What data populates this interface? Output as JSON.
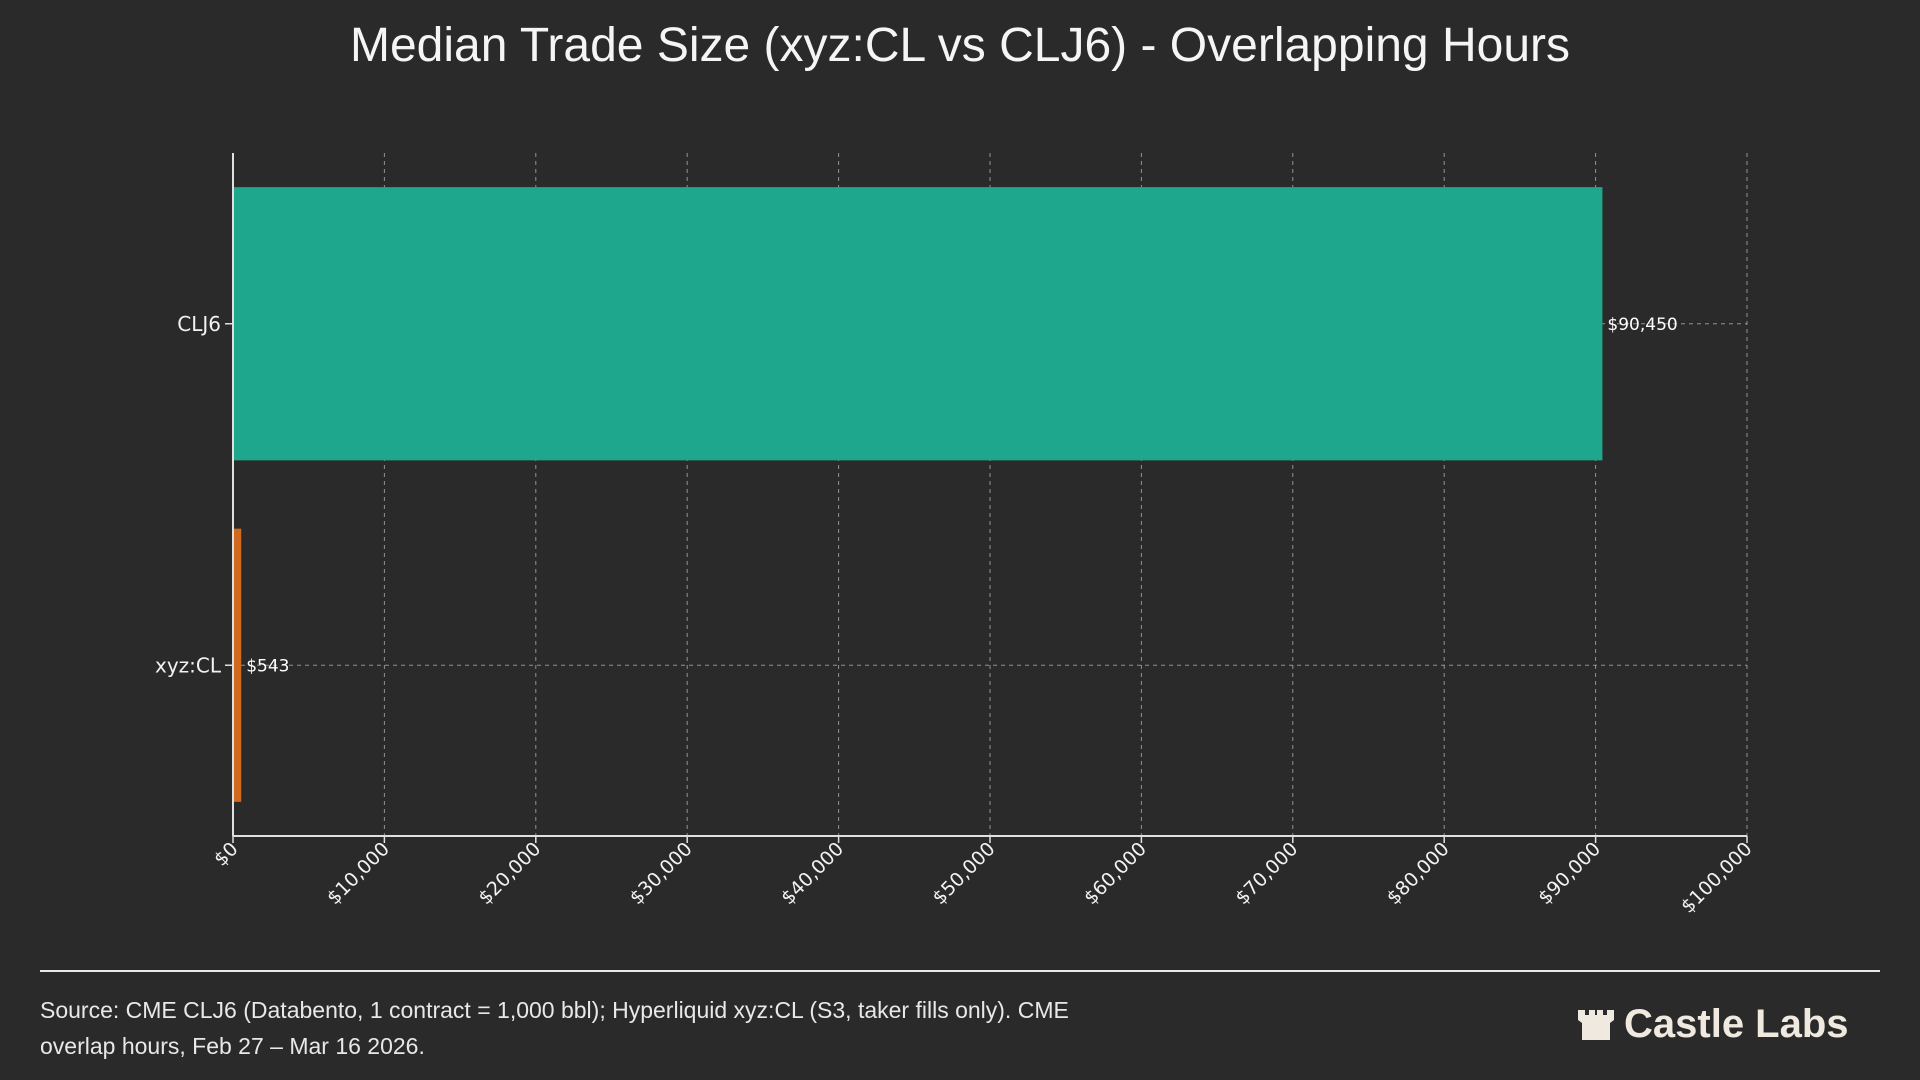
{
  "chart_data": {
    "type": "bar",
    "orientation": "horizontal",
    "title": "Median Trade Size (xyz:CL vs CLJ6) - Overlapping Hours",
    "categories": [
      "CLJ6",
      "xyz:CL"
    ],
    "values": [
      90450,
      543
    ],
    "data_labels": [
      "$90,450",
      "$543"
    ],
    "colors": [
      "#1fa78e",
      "#d2691e"
    ],
    "xlim": [
      0,
      100000
    ],
    "x_ticks": [
      0,
      10000,
      20000,
      30000,
      40000,
      50000,
      60000,
      70000,
      80000,
      90000,
      100000
    ],
    "x_tick_labels": [
      "$0",
      "$10,000",
      "$20,000",
      "$30,000",
      "$40,000",
      "$50,000",
      "$60,000",
      "$70,000",
      "$80,000",
      "$90,000",
      "$100,000"
    ],
    "grid": true,
    "xlabel": "",
    "ylabel": ""
  },
  "footer": {
    "source_line1": "Source: CME CLJ6 (Databento, 1 contract = 1,000 bbl); Hyperliquid xyz:CL (S3, taker fills only). CME",
    "source_line2": "overlap hours, Feb 27 – Mar 16 2026.",
    "logo": "Castle Labs"
  },
  "colors": {
    "background": "#2a2a2a",
    "text": "#f2f2f2"
  }
}
